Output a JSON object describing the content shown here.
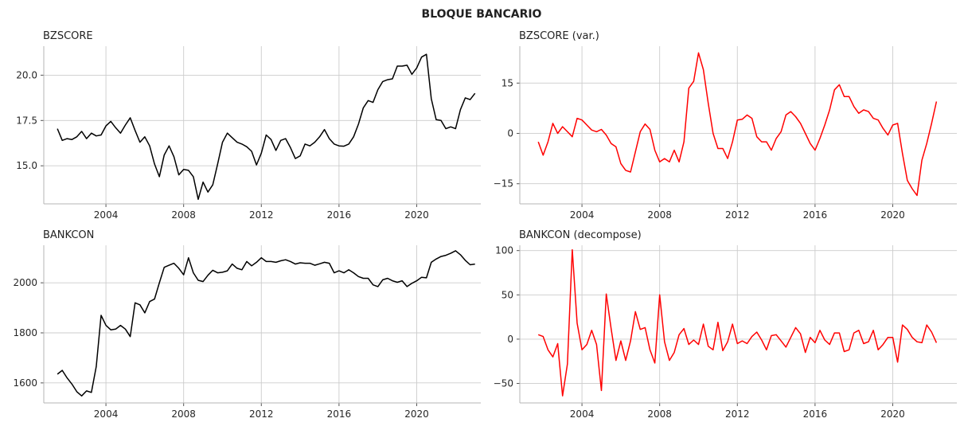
{
  "figure": {
    "title": "BLOQUE BANCARIO"
  },
  "chart_data": [
    {
      "id": "bzscore",
      "type": "line",
      "title": "BZSCORE",
      "color": "#000000",
      "xlim": [
        2000.8,
        2023.3
      ],
      "ylim": [
        12.9,
        21.6
      ],
      "xticks": [
        2004,
        2008,
        2012,
        2016,
        2020
      ],
      "yticks": [
        15.0,
        17.5,
        20.0
      ],
      "ytick_labels": [
        "15.0",
        "17.5",
        "20.0"
      ],
      "series": [
        {
          "x_start": 2001.5,
          "x_step": 0.25,
          "values": [
            17.05,
            16.4,
            16.5,
            16.45,
            16.6,
            16.9,
            16.5,
            16.8,
            16.65,
            16.7,
            17.2,
            17.45,
            17.1,
            16.8,
            17.25,
            17.65,
            16.95,
            16.3,
            16.6,
            16.1,
            15.1,
            14.4,
            15.6,
            16.1,
            15.5,
            14.5,
            14.8,
            14.75,
            14.4,
            13.15,
            14.1,
            13.55,
            13.95,
            15.1,
            16.3,
            16.8,
            16.55,
            16.3,
            16.2,
            16.05,
            15.8,
            15.05,
            15.7,
            16.7,
            16.45,
            15.85,
            16.4,
            16.5,
            16.0,
            15.4,
            15.55,
            16.2,
            16.1,
            16.3,
            16.6,
            17.0,
            16.5,
            16.2,
            16.1,
            16.08,
            16.2,
            16.6,
            17.3,
            18.2,
            18.6,
            18.5,
            19.2,
            19.65,
            19.75,
            19.8,
            20.5,
            20.5,
            20.55,
            20.05,
            20.4,
            21.0,
            21.15,
            18.7,
            17.55,
            17.5,
            17.05,
            17.15,
            17.05,
            18.1,
            18.75,
            18.65,
            19.0
          ]
        }
      ]
    },
    {
      "id": "bzscore-var",
      "type": "line",
      "title": "BZSCORE (var.)",
      "color": "#ff0000",
      "xlim": [
        2000.8,
        2023.3
      ],
      "ylim": [
        -21,
        26
      ],
      "xticks": [
        2004,
        2008,
        2012,
        2016,
        2020
      ],
      "yticks": [
        -15,
        0,
        15
      ],
      "ytick_labels": [
        "−15",
        "0",
        "15"
      ],
      "series": [
        {
          "x_start": 2001.75,
          "x_step": 0.25,
          "values": [
            -2.5,
            -6.5,
            -2.5,
            3,
            0,
            2,
            0.5,
            -1,
            4.5,
            4,
            2.5,
            1,
            0.5,
            1.2,
            -0.5,
            -3,
            -4,
            -9,
            -11,
            -11.5,
            -5.5,
            0.5,
            2.8,
            1.2,
            -5,
            -8.5,
            -7.5,
            -8.5,
            -5,
            -8.5,
            -2.5,
            13.5,
            15.5,
            24,
            19,
            9,
            0,
            -4.5,
            -4.5,
            -7.5,
            -2.5,
            4,
            4.2,
            5.5,
            4.5,
            -1,
            -2.5,
            -2.5,
            -5,
            -1.5,
            0.5,
            5.5,
            6.5,
            5,
            3,
            0,
            -3,
            -5,
            -1.5,
            2.5,
            7,
            13,
            14.5,
            11,
            11,
            8,
            6,
            7,
            6.5,
            4.5,
            4,
            1.5,
            -0.5,
            2.5,
            3,
            -6,
            -14,
            -16.5,
            -18.5,
            -8,
            -3,
            3,
            9.5
          ]
        }
      ]
    },
    {
      "id": "bankcon",
      "type": "line",
      "title": "BANKCON",
      "color": "#000000",
      "xlim": [
        2000.8,
        2023.3
      ],
      "ylim": [
        1520,
        2150
      ],
      "xticks": [
        2004,
        2008,
        2012,
        2016,
        2020
      ],
      "yticks": [
        1600,
        1800,
        2000
      ],
      "ytick_labels": [
        "1600",
        "1800",
        "2000"
      ],
      "series": [
        {
          "x_start": 2001.5,
          "x_step": 0.25,
          "values": [
            1635,
            1650,
            1620,
            1595,
            1565,
            1548,
            1568,
            1562,
            1665,
            1870,
            1830,
            1812,
            1815,
            1830,
            1815,
            1785,
            1920,
            1912,
            1880,
            1925,
            1935,
            2000,
            2062,
            2070,
            2078,
            2058,
            2032,
            2100,
            2040,
            2010,
            2005,
            2030,
            2050,
            2040,
            2042,
            2048,
            2075,
            2058,
            2052,
            2085,
            2068,
            2082,
            2100,
            2085,
            2085,
            2082,
            2088,
            2092,
            2085,
            2075,
            2080,
            2078,
            2078,
            2070,
            2076,
            2082,
            2078,
            2040,
            2048,
            2040,
            2052,
            2040,
            2025,
            2018,
            2018,
            1992,
            1985,
            2012,
            2018,
            2008,
            2002,
            2008,
            1985,
            1998,
            2008,
            2022,
            2020,
            2082,
            2095,
            2105,
            2110,
            2118,
            2128,
            2112,
            2090,
            2072,
            2075
          ]
        }
      ]
    },
    {
      "id": "bankcon-decompose",
      "type": "line",
      "title": "BANKCON (decompose)",
      "color": "#ff0000",
      "xlim": [
        2000.8,
        2023.3
      ],
      "ylim": [
        -72,
        106
      ],
      "xticks": [
        2004,
        2008,
        2012,
        2016,
        2020
      ],
      "yticks": [
        -50,
        0,
        50,
        100
      ],
      "ytick_labels": [
        "−50",
        "0",
        "50",
        "100"
      ],
      "series": [
        {
          "x_start": 2001.75,
          "x_step": 0.25,
          "values": [
            5,
            3,
            -12,
            -20,
            -5,
            -64,
            -28,
            101,
            18,
            -12,
            -6,
            10,
            -6,
            -58,
            51,
            12,
            -24,
            -2,
            -24,
            -2,
            31,
            11,
            13,
            -12,
            -27,
            50,
            -3,
            -24,
            -15,
            5,
            12,
            -6,
            -1,
            -6,
            17,
            -8,
            -12,
            19,
            -13,
            -3,
            17,
            -5,
            -2,
            -5,
            3,
            8,
            -1,
            -12,
            4,
            5,
            -2,
            -9,
            2,
            13,
            6,
            -15,
            2,
            -4,
            10,
            -1,
            -6,
            7,
            7,
            -14,
            -12,
            7,
            10,
            -5,
            -3,
            10,
            -12,
            -6,
            2,
            2,
            -26,
            16,
            11,
            2,
            -3,
            -4,
            16,
            8,
            -4
          ]
        }
      ]
    }
  ]
}
